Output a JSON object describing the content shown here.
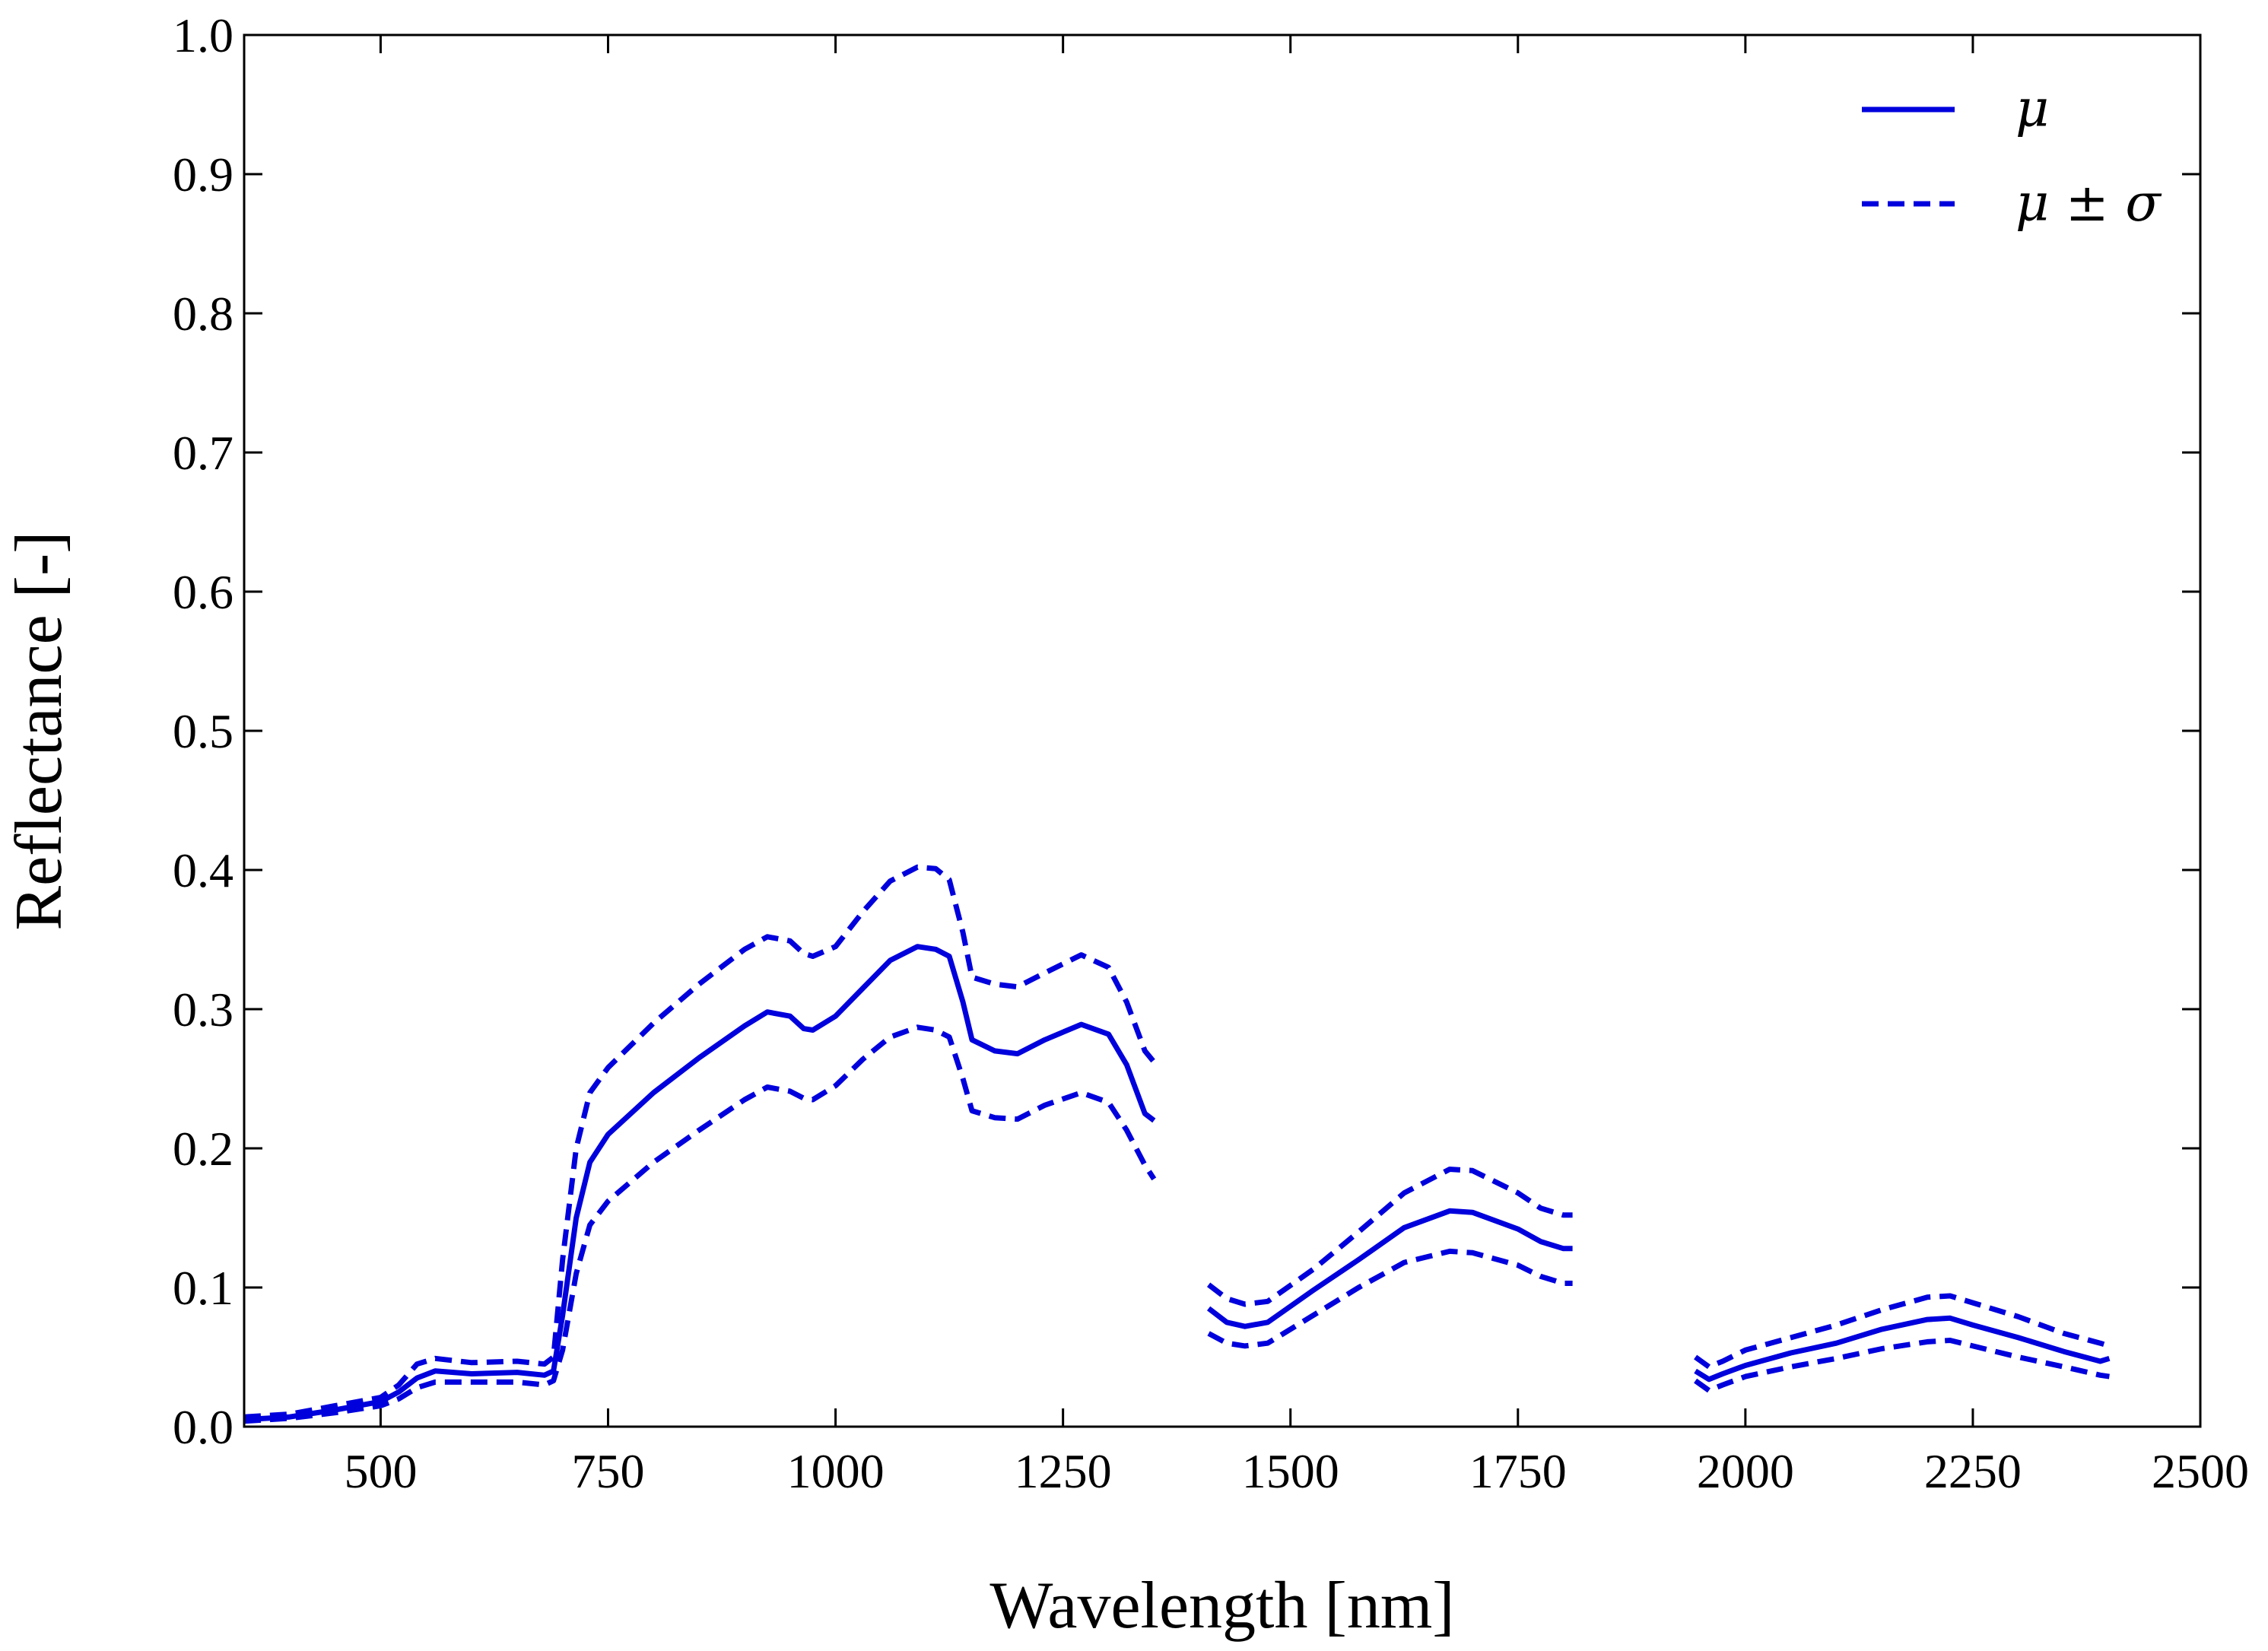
{
  "chart_data": {
    "type": "line",
    "title": "",
    "xlabel": "Wavelength [nm]",
    "ylabel": "Reflectance [-]",
    "xlim": [
      350,
      2500
    ],
    "ylim": [
      0.0,
      1.0
    ],
    "xticks": [
      500,
      750,
      1000,
      1250,
      1500,
      1750,
      2000,
      2250,
      2500
    ],
    "xtick_labels": [
      "500",
      "750",
      "1000",
      "1250",
      "1500",
      "1750",
      "2000",
      "2250",
      "2500"
    ],
    "yticks": [
      0.0,
      0.1,
      0.2,
      0.3,
      0.4,
      0.5,
      0.6,
      0.7,
      0.8,
      0.9,
      1.0
    ],
    "ytick_labels": [
      "0.0",
      "0.1",
      "0.2",
      "0.3",
      "0.4",
      "0.5",
      "0.6",
      "0.7",
      "0.8",
      "0.9",
      "1.0"
    ],
    "grid": false,
    "legend": {
      "placement": "top-right",
      "entries": [
        {
          "label": "μ",
          "style": "solid"
        },
        {
          "label": "μ ± σ",
          "style": "dashed"
        }
      ]
    },
    "color": "#0000dd",
    "series": [
      {
        "name": "μ",
        "style": "solid",
        "segments": [
          [
            [
              350,
              0.005
            ],
            [
              400,
              0.007
            ],
            [
              450,
              0.012
            ],
            [
              500,
              0.018
            ],
            [
              520,
              0.025
            ],
            [
              540,
              0.035
            ],
            [
              560,
              0.04
            ],
            [
              600,
              0.038
            ],
            [
              650,
              0.039
            ],
            [
              680,
              0.037
            ],
            [
              690,
              0.04
            ],
            [
              700,
              0.08
            ],
            [
              715,
              0.15
            ],
            [
              730,
              0.19
            ],
            [
              750,
              0.21
            ],
            [
              800,
              0.24
            ],
            [
              850,
              0.265
            ],
            [
              900,
              0.288
            ],
            [
              925,
              0.298
            ],
            [
              950,
              0.295
            ],
            [
              965,
              0.286
            ],
            [
              975,
              0.285
            ],
            [
              1000,
              0.295
            ],
            [
              1030,
              0.315
            ],
            [
              1060,
              0.335
            ],
            [
              1090,
              0.345
            ],
            [
              1110,
              0.343
            ],
            [
              1125,
              0.338
            ],
            [
              1140,
              0.305
            ],
            [
              1150,
              0.278
            ],
            [
              1175,
              0.27
            ],
            [
              1200,
              0.268
            ],
            [
              1230,
              0.278
            ],
            [
              1270,
              0.289
            ],
            [
              1300,
              0.282
            ],
            [
              1320,
              0.26
            ],
            [
              1340,
              0.225
            ],
            [
              1350,
              0.22
            ]
          ],
          [
            [
              1410,
              0.085
            ],
            [
              1430,
              0.075
            ],
            [
              1450,
              0.072
            ],
            [
              1475,
              0.075
            ],
            [
              1525,
              0.098
            ],
            [
              1575,
              0.12
            ],
            [
              1625,
              0.143
            ],
            [
              1675,
              0.155
            ],
            [
              1700,
              0.154
            ],
            [
              1750,
              0.142
            ],
            [
              1775,
              0.133
            ],
            [
              1800,
              0.128
            ],
            [
              1810,
              0.128
            ]
          ],
          [
            [
              1945,
              0.04
            ],
            [
              1960,
              0.034
            ],
            [
              1975,
              0.038
            ],
            [
              2000,
              0.044
            ],
            [
              2050,
              0.053
            ],
            [
              2100,
              0.06
            ],
            [
              2150,
              0.07
            ],
            [
              2200,
              0.077
            ],
            [
              2225,
              0.078
            ],
            [
              2250,
              0.073
            ],
            [
              2300,
              0.064
            ],
            [
              2350,
              0.054
            ],
            [
              2390,
              0.047
            ],
            [
              2400,
              0.049
            ]
          ]
        ]
      },
      {
        "name": "μ + σ",
        "style": "dashed",
        "segments": [
          [
            [
              350,
              0.007
            ],
            [
              400,
              0.009
            ],
            [
              450,
              0.015
            ],
            [
              500,
              0.021
            ],
            [
              520,
              0.03
            ],
            [
              540,
              0.045
            ],
            [
              560,
              0.049
            ],
            [
              600,
              0.046
            ],
            [
              650,
              0.047
            ],
            [
              680,
              0.045
            ],
            [
              690,
              0.05
            ],
            [
              700,
              0.12
            ],
            [
              715,
              0.2
            ],
            [
              730,
              0.24
            ],
            [
              750,
              0.258
            ],
            [
              800,
              0.29
            ],
            [
              850,
              0.318
            ],
            [
              900,
              0.343
            ],
            [
              925,
              0.352
            ],
            [
              950,
              0.349
            ],
            [
              965,
              0.34
            ],
            [
              975,
              0.338
            ],
            [
              1000,
              0.345
            ],
            [
              1030,
              0.37
            ],
            [
              1060,
              0.392
            ],
            [
              1090,
              0.402
            ],
            [
              1110,
              0.401
            ],
            [
              1125,
              0.393
            ],
            [
              1140,
              0.355
            ],
            [
              1150,
              0.323
            ],
            [
              1175,
              0.318
            ],
            [
              1200,
              0.316
            ],
            [
              1230,
              0.326
            ],
            [
              1270,
              0.339
            ],
            [
              1300,
              0.33
            ],
            [
              1320,
              0.305
            ],
            [
              1340,
              0.27
            ],
            [
              1350,
              0.262
            ]
          ],
          [
            [
              1410,
              0.102
            ],
            [
              1430,
              0.092
            ],
            [
              1450,
              0.088
            ],
            [
              1475,
              0.09
            ],
            [
              1525,
              0.113
            ],
            [
              1575,
              0.14
            ],
            [
              1625,
              0.168
            ],
            [
              1675,
              0.185
            ],
            [
              1700,
              0.184
            ],
            [
              1750,
              0.168
            ],
            [
              1775,
              0.157
            ],
            [
              1800,
              0.152
            ],
            [
              1810,
              0.152
            ]
          ],
          [
            [
              1945,
              0.05
            ],
            [
              1960,
              0.043
            ],
            [
              1975,
              0.047
            ],
            [
              2000,
              0.055
            ],
            [
              2050,
              0.064
            ],
            [
              2100,
              0.073
            ],
            [
              2150,
              0.084
            ],
            [
              2200,
              0.093
            ],
            [
              2225,
              0.094
            ],
            [
              2250,
              0.089
            ],
            [
              2300,
              0.079
            ],
            [
              2350,
              0.067
            ],
            [
              2390,
              0.06
            ],
            [
              2400,
              0.058
            ]
          ]
        ]
      },
      {
        "name": "μ − σ",
        "style": "dashed",
        "segments": [
          [
            [
              350,
              0.004
            ],
            [
              400,
              0.006
            ],
            [
              450,
              0.01
            ],
            [
              500,
              0.015
            ],
            [
              520,
              0.02
            ],
            [
              540,
              0.028
            ],
            [
              560,
              0.032
            ],
            [
              600,
              0.032
            ],
            [
              650,
              0.032
            ],
            [
              680,
              0.03
            ],
            [
              690,
              0.033
            ],
            [
              700,
              0.055
            ],
            [
              715,
              0.11
            ],
            [
              730,
              0.145
            ],
            [
              750,
              0.162
            ],
            [
              800,
              0.19
            ],
            [
              850,
              0.213
            ],
            [
              900,
              0.235
            ],
            [
              925,
              0.244
            ],
            [
              950,
              0.241
            ],
            [
              965,
              0.236
            ],
            [
              975,
              0.235
            ],
            [
              1000,
              0.245
            ],
            [
              1030,
              0.264
            ],
            [
              1060,
              0.28
            ],
            [
              1090,
              0.287
            ],
            [
              1110,
              0.285
            ],
            [
              1125,
              0.28
            ],
            [
              1140,
              0.25
            ],
            [
              1150,
              0.227
            ],
            [
              1175,
              0.222
            ],
            [
              1200,
              0.221
            ],
            [
              1230,
              0.231
            ],
            [
              1270,
              0.24
            ],
            [
              1300,
              0.233
            ],
            [
              1320,
              0.213
            ],
            [
              1340,
              0.188
            ],
            [
              1350,
              0.178
            ]
          ],
          [
            [
              1410,
              0.067
            ],
            [
              1430,
              0.06
            ],
            [
              1450,
              0.058
            ],
            [
              1475,
              0.06
            ],
            [
              1525,
              0.08
            ],
            [
              1575,
              0.1
            ],
            [
              1625,
              0.118
            ],
            [
              1675,
              0.126
            ],
            [
              1700,
              0.125
            ],
            [
              1750,
              0.116
            ],
            [
              1775,
              0.108
            ],
            [
              1800,
              0.103
            ],
            [
              1810,
              0.103
            ]
          ],
          [
            [
              1945,
              0.033
            ],
            [
              1960,
              0.026
            ],
            [
              1975,
              0.03
            ],
            [
              2000,
              0.036
            ],
            [
              2050,
              0.043
            ],
            [
              2100,
              0.049
            ],
            [
              2150,
              0.056
            ],
            [
              2200,
              0.061
            ],
            [
              2225,
              0.062
            ],
            [
              2250,
              0.058
            ],
            [
              2300,
              0.05
            ],
            [
              2350,
              0.043
            ],
            [
              2390,
              0.037
            ],
            [
              2400,
              0.036
            ]
          ]
        ]
      }
    ]
  }
}
